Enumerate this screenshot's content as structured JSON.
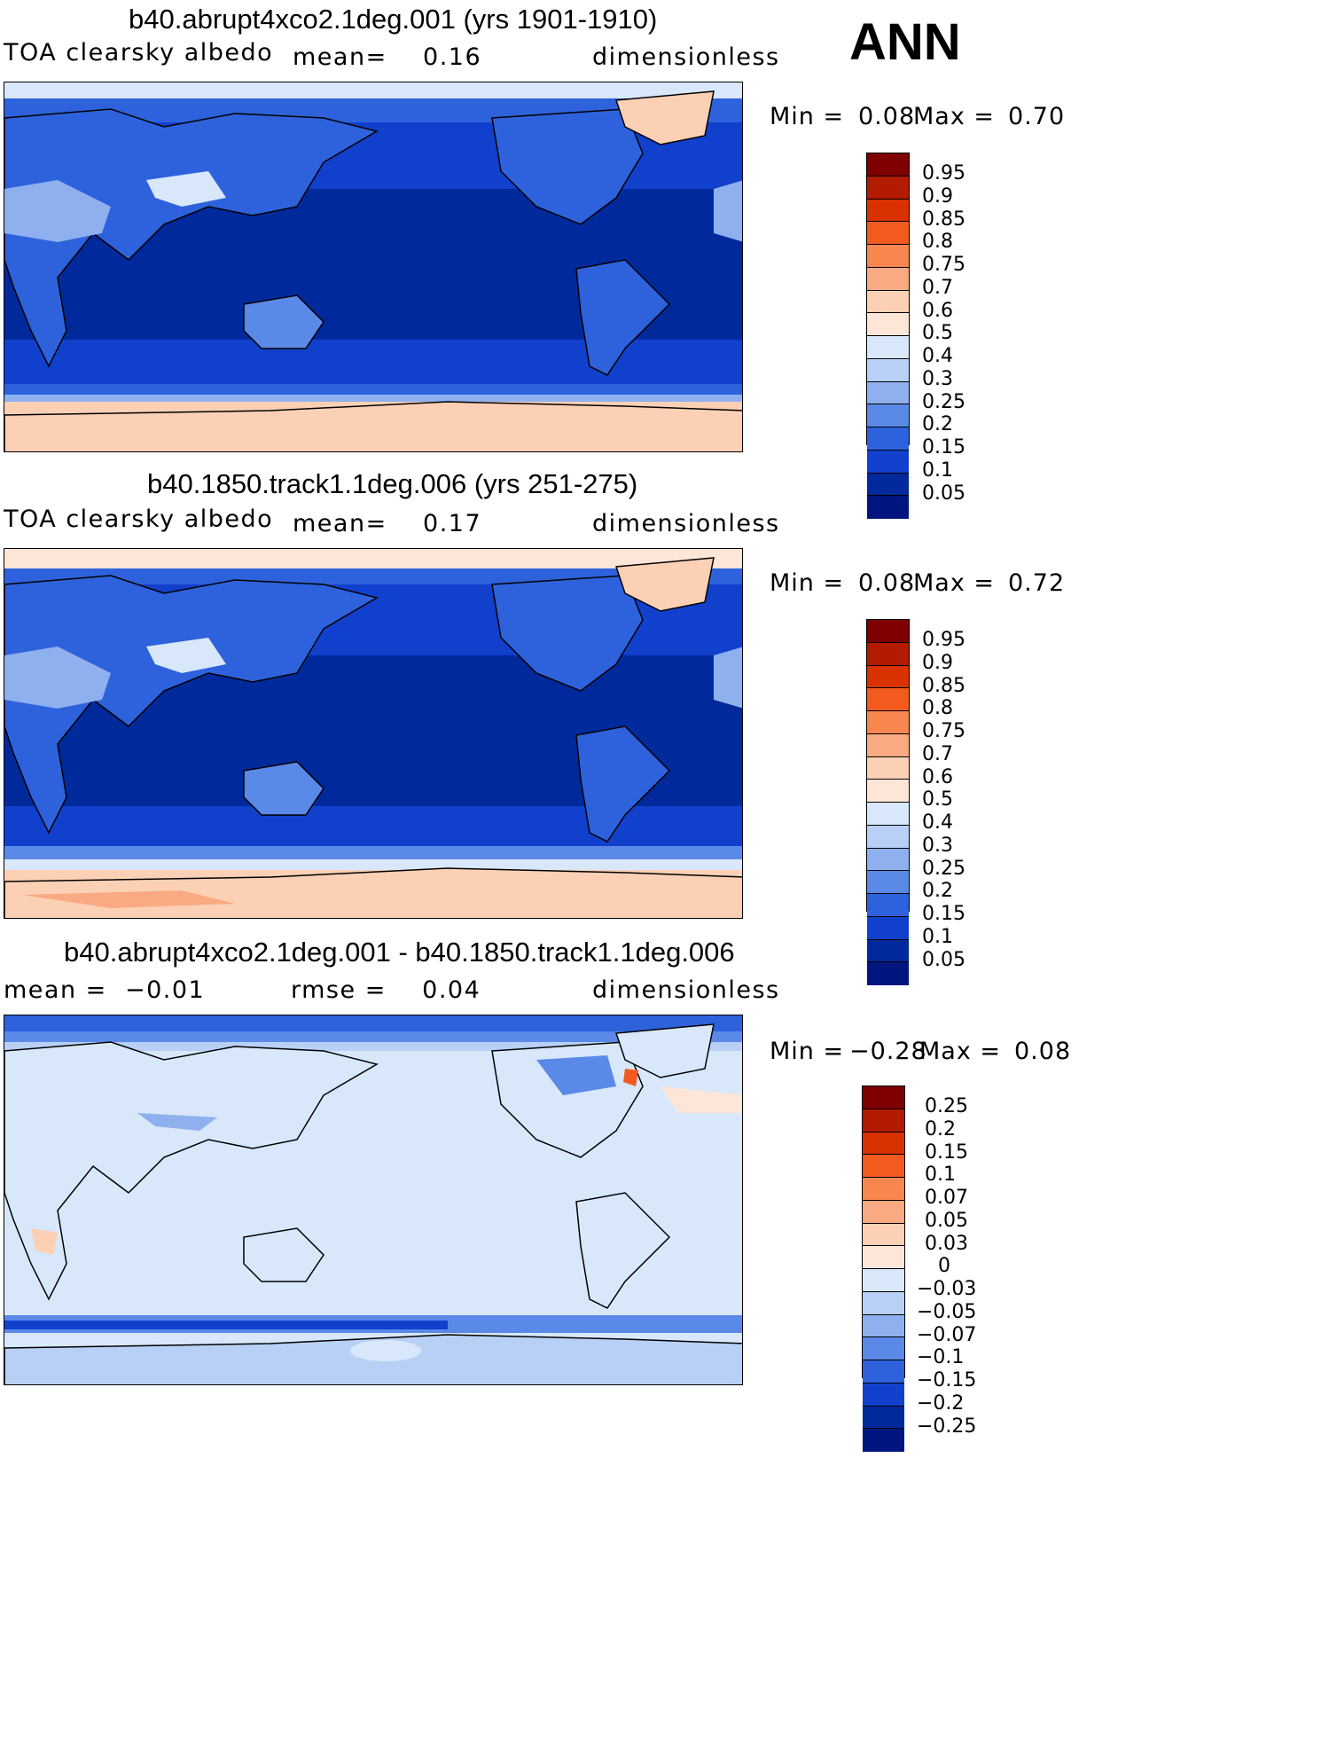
{
  "season": "ANN",
  "panels": [
    {
      "title": "b40.abrupt4xco2.1deg.001 (yrs 1901-1910)",
      "left_label": "TOA clearsky albedo",
      "center_label": "mean=    0.16",
      "right_label": "dimensionless",
      "min_text": "Min =",
      "min_value": "0.08",
      "max_text": "Max =",
      "max_value": "0.70",
      "colorbar_labels": [
        "0.95",
        "0.9",
        "0.85",
        "0.8",
        "0.75",
        "0.7",
        "0.6",
        "0.5",
        "0.4",
        "0.3",
        "0.25",
        "0.2",
        "0.15",
        "0.1",
        "0.05"
      ]
    },
    {
      "title": "b40.1850.track1.1deg.006 (yrs 251-275)",
      "left_label": "TOA clearsky albedo",
      "center_label": "mean=    0.17",
      "right_label": "dimensionless",
      "min_text": "Min =",
      "min_value": "0.08",
      "max_text": "Max =",
      "max_value": "0.72",
      "colorbar_labels": [
        "0.95",
        "0.9",
        "0.85",
        "0.8",
        "0.75",
        "0.7",
        "0.6",
        "0.5",
        "0.4",
        "0.3",
        "0.25",
        "0.2",
        "0.15",
        "0.1",
        "0.05"
      ]
    },
    {
      "title": "b40.abrupt4xco2.1deg.001 - b40.1850.track1.1deg.006",
      "left_label": "mean =  −0.01",
      "center_label": "rmse =    0.04",
      "right_label": "dimensionless",
      "min_text": "Min =",
      "min_value": "−0.28",
      "max_text": "Max =",
      "max_value": "0.08",
      "colorbar_labels": [
        "0.25",
        "0.2",
        "0.15",
        "0.1",
        "0.07",
        "0.05",
        "0.03",
        "0",
        "−0.03",
        "−0.05",
        "−0.07",
        "−0.1",
        "−0.15",
        "−0.2",
        "−0.25"
      ]
    }
  ],
  "colors": {
    "scale": [
      "#7f0000",
      "#b31b00",
      "#d93200",
      "#f25a1e",
      "#f7874f",
      "#f9aa82",
      "#fcd0b5",
      "#fde6d7",
      "#d8e8fa",
      "#b8d0f5",
      "#8fb0ee",
      "#5a89e8",
      "#2d62dc",
      "#1140cc",
      "#002a9c",
      "#001580"
    ],
    "land_outline": "#000000"
  }
}
